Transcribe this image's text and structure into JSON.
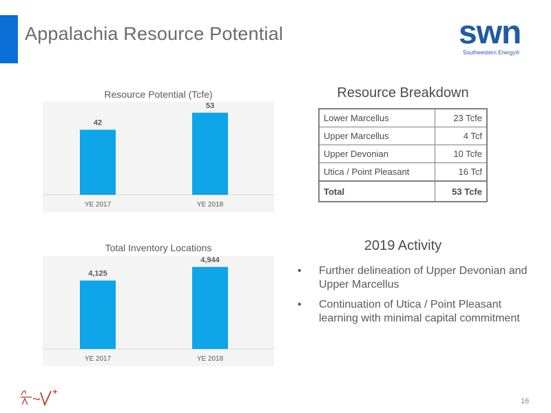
{
  "slide": {
    "title": "Appalachia Resource Potential",
    "page_number": "16"
  },
  "logo": {
    "word": "swn",
    "tagline": "Southwestern Energy®"
  },
  "colors": {
    "accent": "#0a6fd6",
    "bar": "#0ea5e9",
    "logo": "#1f5aa6"
  },
  "chart_data": [
    {
      "type": "bar",
      "title": "Resource Potential (Tcfe)",
      "categories": [
        "YE 2017",
        "YE 2018"
      ],
      "values": [
        42,
        53
      ],
      "value_labels": [
        "42",
        "53"
      ],
      "ylim": [
        0,
        60
      ],
      "grid": false
    },
    {
      "type": "bar",
      "title": "Total Inventory Locations",
      "categories": [
        "YE 2017",
        "YE 2018"
      ],
      "values": [
        4125,
        4944
      ],
      "value_labels": [
        "4,125",
        "4,944"
      ],
      "ylim": [
        0,
        5600
      ],
      "grid": false
    }
  ],
  "breakdown": {
    "heading": "Resource Breakdown",
    "rows": [
      {
        "label": "Lower Marcellus",
        "value": "23 Tcfe"
      },
      {
        "label": "Upper Marcellus",
        "value": "4 Tcf"
      },
      {
        "label": "Upper Devonian",
        "value": "10 Tcfe"
      },
      {
        "label": "Utica / Point Pleasant",
        "value": "16 Tcf"
      }
    ],
    "total": {
      "label": "Total",
      "value": "53 Tcfe"
    }
  },
  "activity": {
    "heading": "2019 Activity",
    "bullets": [
      "Further delineation of Upper Devonian and Upper Marcellus",
      "Continuation of Utica / Point Pleasant learning with minimal capital commitment"
    ]
  }
}
